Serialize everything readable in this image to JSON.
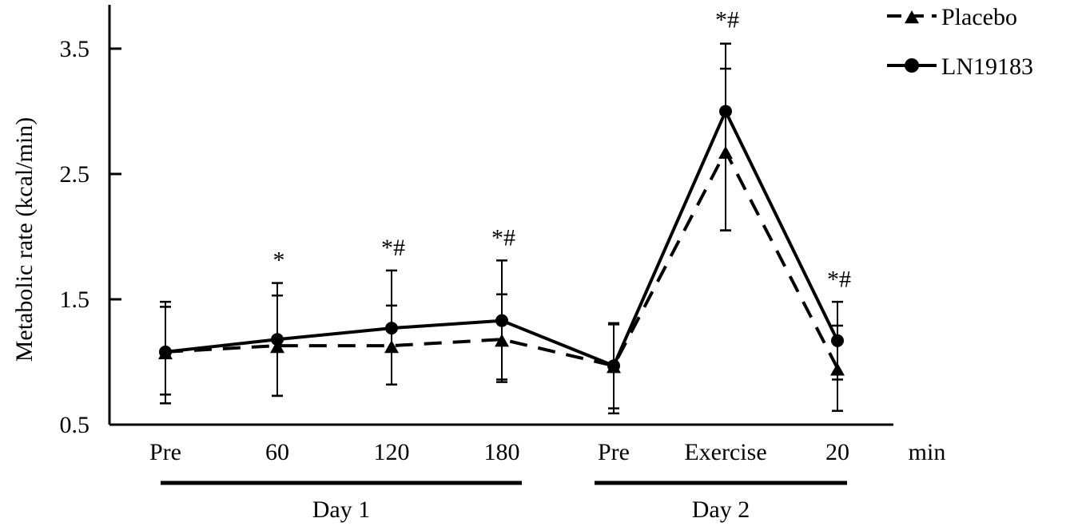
{
  "chart_data": {
    "type": "line",
    "title": "",
    "ylabel": "Metabolic rate (kcal/min)",
    "xlabel": "",
    "x_unit": "min",
    "ylim": [
      0.5,
      3.85
    ],
    "yticks": [
      0.5,
      1.5,
      2.5,
      3.5
    ],
    "ytick_labels": [
      "0.5",
      "1.5",
      "2.5",
      "3.5"
    ],
    "grid": false,
    "legend_position": "top-right",
    "categories": [
      "Pre",
      "60",
      "120",
      "180",
      "Pre",
      "Exercise",
      "20"
    ],
    "groups": [
      {
        "label": "Day 1",
        "from": 0,
        "to": 3
      },
      {
        "label": "Day 2",
        "from": 4,
        "to": 6
      }
    ],
    "series": [
      {
        "name": "Placebo",
        "style": "dashed",
        "marker": "triangle",
        "values": [
          1.08,
          1.13,
          1.13,
          1.18,
          0.97,
          2.68,
          0.95
        ],
        "err_low": [
          0.67,
          0.73,
          0.82,
          0.84,
          0.59,
          2.05,
          0.61
        ],
        "err_high": [
          1.48,
          1.53,
          1.45,
          1.54,
          1.3,
          3.34,
          1.29
        ]
      },
      {
        "name": "LN19183",
        "style": "solid",
        "marker": "circle",
        "values": [
          1.08,
          1.18,
          1.27,
          1.33,
          0.97,
          3.0,
          1.17
        ],
        "err_low": [
          0.74,
          0.73,
          0.82,
          0.86,
          0.63,
          2.05,
          0.86
        ],
        "err_high": [
          1.44,
          1.63,
          1.73,
          1.81,
          1.31,
          3.54,
          1.48
        ]
      }
    ],
    "annotations": [
      {
        "category": 1,
        "text": "*",
        "y": 1.75
      },
      {
        "category": 2,
        "text": "*#",
        "y": 1.85
      },
      {
        "category": 3,
        "text": "*#",
        "y": 1.93
      },
      {
        "category": 5,
        "text": "*#",
        "y": 3.67
      },
      {
        "category": 6,
        "text": "*#",
        "y": 1.6
      }
    ],
    "colors": {
      "lines": "#000000"
    }
  }
}
